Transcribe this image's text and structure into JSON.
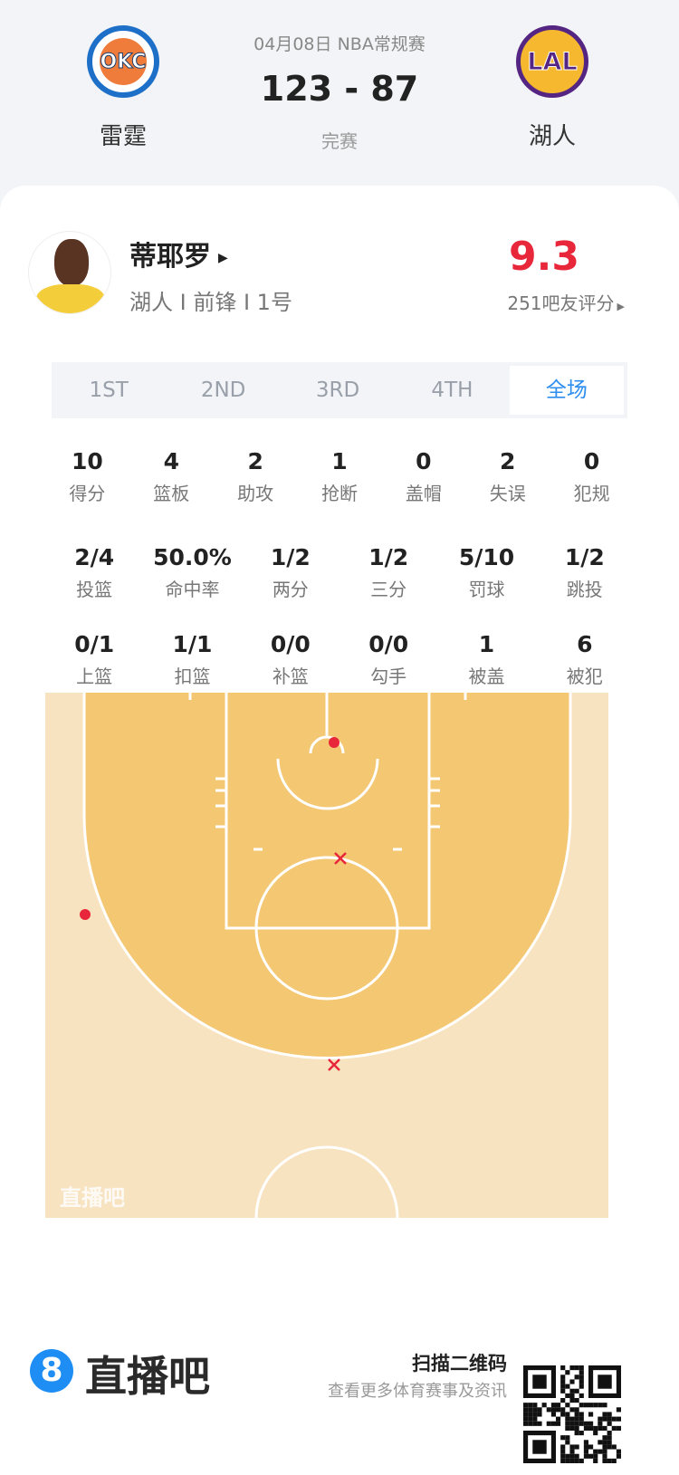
{
  "header": {
    "date_type": "04月08日 NBA常规赛",
    "score": "123 - 87",
    "status": "完赛",
    "home": {
      "name": "雷霆",
      "logo": "OKC",
      "color": "#1d6fc7"
    },
    "away": {
      "name": "湖人",
      "logo": "LAL",
      "color": "#552583"
    }
  },
  "player": {
    "name": "蒂耶罗",
    "info": "湖人 I 前锋 I 1号",
    "rating": "9.3",
    "rating_count": "251吧友评分",
    "rating_color": "#e8273a"
  },
  "tabs": [
    {
      "label": "1ST"
    },
    {
      "label": "2ND"
    },
    {
      "label": "3RD"
    },
    {
      "label": "4TH"
    },
    {
      "label": "全场",
      "active": true
    }
  ],
  "stats_rows": [
    [
      {
        "v": "10",
        "l": "得分"
      },
      {
        "v": "4",
        "l": "篮板"
      },
      {
        "v": "2",
        "l": "助攻"
      },
      {
        "v": "1",
        "l": "抢断"
      },
      {
        "v": "0",
        "l": "盖帽"
      },
      {
        "v": "2",
        "l": "失误"
      },
      {
        "v": "0",
        "l": "犯规"
      }
    ],
    [
      {
        "v": "2/4",
        "l": "投篮"
      },
      {
        "v": "50.0%",
        "l": "命中率"
      },
      {
        "v": "1/2",
        "l": "两分"
      },
      {
        "v": "1/2",
        "l": "三分"
      },
      {
        "v": "5/10",
        "l": "罚球"
      },
      {
        "v": "1/2",
        "l": "跳投"
      }
    ],
    [
      {
        "v": "0/1",
        "l": "上篮"
      },
      {
        "v": "1/1",
        "l": "扣篮"
      },
      {
        "v": "0/0",
        "l": "补篮"
      },
      {
        "v": "0/0",
        "l": "勾手"
      },
      {
        "v": "1",
        "l": "被盖"
      },
      {
        "v": "6",
        "l": "被犯"
      }
    ]
  ],
  "court": {
    "watermark": "直播吧",
    "shots": [
      {
        "result": "made"
      },
      {
        "result": "made"
      },
      {
        "result": "missed"
      },
      {
        "result": "missed"
      }
    ]
  },
  "footer": {
    "brand": "直播吧",
    "brand_number": "8",
    "scan": "扫描二维码",
    "scan_sub": "查看更多体育赛事及资讯"
  }
}
